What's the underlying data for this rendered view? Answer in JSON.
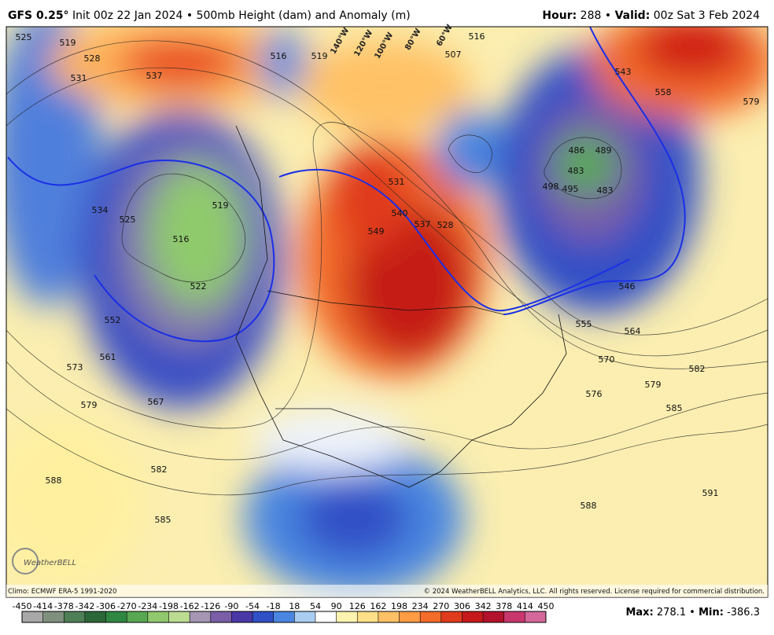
{
  "header": {
    "model": "GFS 0.25°",
    "init": "Init 00z 22 Jan 2024",
    "separator": "•",
    "product": "500mb Height (dam) and Anomaly (m)",
    "hour_label": "Hour:",
    "hour": "288",
    "valid_label": "Valid:",
    "valid": "00z Sat 3 Feb 2024"
  },
  "map": {
    "contour_labels": [
      "525",
      "519",
      "528",
      "531",
      "537",
      "516",
      "519",
      "507",
      "516",
      "543",
      "558",
      "579",
      "531",
      "540",
      "537",
      "528",
      "549",
      "486",
      "489",
      "483",
      "498",
      "495",
      "483",
      "534",
      "525",
      "519",
      "516",
      "522",
      "552",
      "561",
      "573",
      "567",
      "579",
      "546",
      "555",
      "564",
      "570",
      "579",
      "582",
      "576",
      "585",
      "582",
      "588",
      "585",
      "591",
      "588"
    ],
    "longitude_labels": [
      "140°W",
      "120°W",
      "100°W",
      "80°W",
      "60°W"
    ],
    "logo": "WeatherBELL"
  },
  "footer": {
    "climo": "Climo: ECMWF ERA-5 1991-2020",
    "copyright": "© 2024 WeatherBELL Analytics, LLC. All rights reserved. License required for commercial distribution.",
    "max_label": "Max:",
    "max": 278.1,
    "min_label": "Min:",
    "min": -386.3
  },
  "colorbar": {
    "ticks": [
      -450,
      -414,
      -378,
      -342,
      -306,
      -270,
      -234,
      -198,
      -162,
      -126,
      -90,
      -54,
      -18,
      18,
      54,
      90,
      126,
      162,
      198,
      234,
      270,
      306,
      342,
      378,
      414,
      450
    ],
    "colors": [
      "#a8a8a8",
      "#7f907f",
      "#4f7f57",
      "#2b6839",
      "#2f8742",
      "#58a852",
      "#90c96d",
      "#bcdc92",
      "#a596b4",
      "#7a5ea8",
      "#4a38a6",
      "#3050c6",
      "#4a86e0",
      "#a9cdf1",
      "#ffffff",
      "#fff3b0",
      "#ffe089",
      "#ffc165",
      "#ff9c44",
      "#f36c2a",
      "#e03b1d",
      "#c51a19",
      "#b3122c",
      "#c8366d",
      "#d4689a"
    ]
  }
}
